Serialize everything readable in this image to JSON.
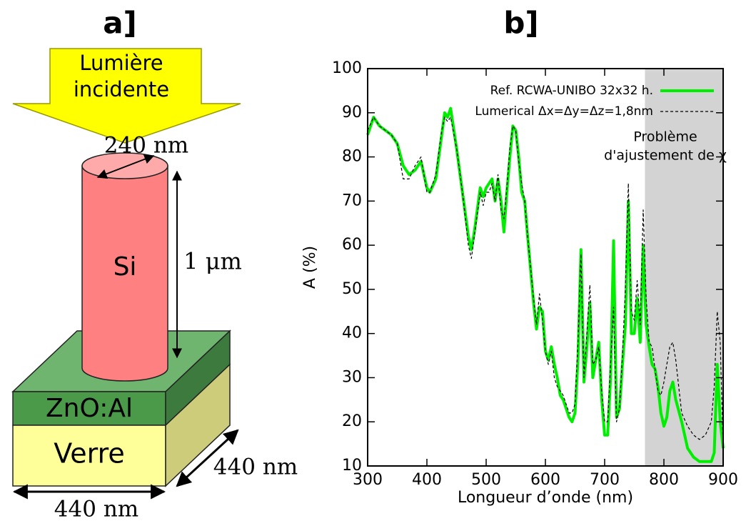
{
  "panel_a": {
    "label": "a]",
    "arrow_text": [
      "Lumière",
      "incidente"
    ],
    "diameter": "240 nm",
    "pillar": "Si",
    "height": "1 μm",
    "layer": "ZnO:Al",
    "substrate": "Verre",
    "width_front": "440 nm",
    "width_side": "440 nm"
  },
  "chart_data": {
    "type": "line",
    "panel_label": "b]",
    "x_label": "Longueur d’onde (nm)",
    "y_label": "A (%)",
    "xlim": [
      300,
      900
    ],
    "ylim": [
      10,
      100
    ],
    "xticks": [
      300,
      400,
      500,
      600,
      700,
      800,
      900
    ],
    "yticks": [
      10,
      20,
      30,
      40,
      50,
      60,
      70,
      80,
      90,
      100
    ],
    "shaded_region": [
      768,
      900
    ],
    "shaded_color": "#d3d3d3",
    "annotation": [
      "Problème",
      "d'ajustement de χ"
    ],
    "legend": "upper right",
    "x": [
      300,
      310,
      320,
      340,
      350,
      360,
      370,
      380,
      390,
      400,
      405,
      415,
      425,
      430,
      435,
      440,
      450,
      460,
      470,
      475,
      480,
      490,
      495,
      500,
      505,
      510,
      515,
      520,
      525,
      530,
      535,
      540,
      545,
      550,
      555,
      560,
      565,
      570,
      580,
      585,
      590,
      595,
      600,
      605,
      610,
      615,
      620,
      625,
      630,
      640,
      645,
      650,
      655,
      660,
      665,
      670,
      675,
      680,
      685,
      690,
      695,
      700,
      705,
      710,
      715,
      720,
      725,
      730,
      735,
      740,
      745,
      750,
      755,
      760,
      765,
      770,
      775,
      780,
      785,
      790,
      795,
      800,
      805,
      810,
      815,
      820,
      830,
      840,
      850,
      860,
      870,
      880,
      885,
      890,
      895,
      900
    ],
    "series": [
      {
        "name": "Ref. RCWA-UNIBO 32x32 h.",
        "color": "#00ee00",
        "dashed": false,
        "values": [
          85,
          89,
          87,
          85,
          83,
          78,
          76,
          77,
          79,
          73,
          72,
          75,
          85,
          90,
          89,
          91,
          82,
          72,
          62,
          59,
          63,
          73,
          71,
          73,
          74,
          75,
          70,
          75,
          70,
          63,
          72,
          80,
          87,
          86,
          80,
          72,
          70,
          62,
          47,
          41,
          46,
          45,
          36,
          34,
          37,
          33,
          30,
          26,
          25,
          21,
          20,
          22,
          34,
          59,
          29,
          37,
          47,
          30,
          34,
          38,
          25,
          17,
          17,
          30,
          61,
          21,
          23,
          33,
          42,
          70,
          40,
          40,
          48,
          38,
          60,
          42,
          37,
          33,
          32,
          28,
          22,
          19,
          21,
          27,
          29,
          25,
          20,
          14,
          12,
          11,
          11,
          11,
          13,
          33,
          20,
          14
        ]
      },
      {
        "name": "Lumerical Δx=Δy=Δz=1,8nm",
        "color": "#000000",
        "dashed": true,
        "values": [
          86,
          89,
          87,
          85,
          83,
          75,
          75,
          78,
          80,
          72,
          72,
          76,
          86,
          89,
          88,
          89,
          82,
          72,
          60,
          57,
          62,
          72,
          69,
          72,
          72,
          74,
          70,
          76,
          68,
          66,
          73,
          82,
          87,
          86,
          79,
          74,
          70,
          62,
          48,
          42,
          49,
          43,
          36,
          33,
          36,
          30,
          28,
          27,
          26,
          22,
          22,
          24,
          38,
          58,
          30,
          40,
          51,
          33,
          34,
          37,
          27,
          20,
          20,
          33,
          46,
          20,
          23,
          35,
          50,
          74,
          45,
          43,
          52,
          42,
          68,
          48,
          38,
          37,
          32,
          27,
          26,
          29,
          33,
          37,
          38,
          34,
          22,
          19,
          17,
          16,
          17,
          20,
          28,
          45,
          38,
          14
        ]
      }
    ]
  }
}
